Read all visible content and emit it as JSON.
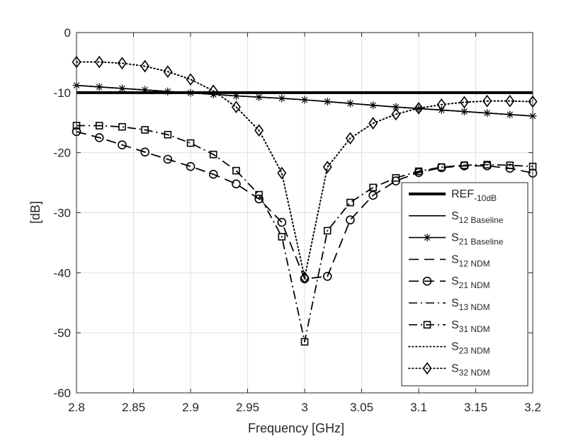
{
  "chart_data": {
    "type": "line",
    "title": "",
    "xlabel": "Frequency [GHz]",
    "ylabel": "[dB]",
    "xlim": [
      2.8,
      3.2
    ],
    "ylim": [
      -60,
      0
    ],
    "xticks": [
      2.8,
      2.85,
      2.9,
      2.95,
      3,
      3.05,
      3.1,
      3.15,
      3.2
    ],
    "xtick_labels": [
      "2.8",
      "2.85",
      "2.9",
      "2.95",
      "3",
      "3.05",
      "3.1",
      "3.15",
      "3.2"
    ],
    "yticks": [
      0,
      -10,
      -20,
      -30,
      -40,
      -50,
      -60
    ],
    "ytick_labels": [
      "0",
      "-10",
      "-20",
      "-30",
      "-40",
      "-50",
      "-60"
    ],
    "grid": true,
    "legend_position": "bottom-right",
    "x": [
      2.8,
      2.82,
      2.84,
      2.86,
      2.88,
      2.9,
      2.92,
      2.94,
      2.96,
      2.98,
      3.0,
      3.02,
      3.04,
      3.06,
      3.08,
      3.1,
      3.12,
      3.14,
      3.16,
      3.18,
      3.2
    ],
    "series": [
      {
        "id": "ref",
        "name": "REF",
        "sub": "-10dB",
        "style": "thick-solid",
        "marker": "none",
        "values": [
          -10,
          -10,
          -10,
          -10,
          -10,
          -10,
          -10,
          -10,
          -10,
          -10,
          -10,
          -10,
          -10,
          -10,
          -10,
          -10,
          -10,
          -10,
          -10,
          -10,
          -10
        ]
      },
      {
        "id": "s12b",
        "name": "S",
        "sub": "12 Baseline",
        "style": "solid",
        "marker": "none",
        "values": [
          -8.8,
          -9.05,
          -9.3,
          -9.55,
          -9.8,
          -10.05,
          -10.3,
          -10.55,
          -10.75,
          -10.95,
          -11.2,
          -11.5,
          -11.8,
          -12.1,
          -12.4,
          -12.65,
          -12.9,
          -13.15,
          -13.4,
          -13.65,
          -13.9
        ]
      },
      {
        "id": "s21b",
        "name": "S",
        "sub": "21 Baseline",
        "style": "solid",
        "marker": "star",
        "values": [
          -8.8,
          -9.05,
          -9.3,
          -9.55,
          -9.8,
          -10.05,
          -10.3,
          -10.55,
          -10.75,
          -10.95,
          -11.2,
          -11.5,
          -11.8,
          -12.1,
          -12.4,
          -12.65,
          -12.9,
          -13.15,
          -13.4,
          -13.65,
          -13.9
        ]
      },
      {
        "id": "s12n",
        "name": "S",
        "sub": "12 NDM",
        "style": "dashed",
        "marker": "none",
        "values": [
          -16.5,
          -17.5,
          -18.7,
          -19.9,
          -21.1,
          -22.3,
          -23.6,
          -25.2,
          -27.7,
          -31.6,
          -41.0,
          -40.6,
          -31.2,
          -27.1,
          -24.7,
          -23.3,
          -22.5,
          -22.2,
          -22.2,
          -22.6,
          -23.4
        ]
      },
      {
        "id": "s21n",
        "name": "S",
        "sub": "21 NDM",
        "style": "dashed",
        "marker": "circle",
        "values": [
          -16.5,
          -17.5,
          -18.7,
          -19.9,
          -21.1,
          -22.3,
          -23.6,
          -25.2,
          -27.7,
          -31.6,
          -41.0,
          -40.6,
          -31.2,
          -27.1,
          -24.7,
          -23.3,
          -22.5,
          -22.2,
          -22.2,
          -22.6,
          -23.4
        ]
      },
      {
        "id": "s13n",
        "name": "S",
        "sub": "13 NDM",
        "style": "dashdot",
        "marker": "none",
        "values": [
          -15.5,
          -15.5,
          -15.7,
          -16.2,
          -17.0,
          -18.4,
          -20.3,
          -23.0,
          -27.0,
          -34.0,
          -51.5,
          -33.0,
          -28.3,
          -25.8,
          -24.2,
          -23.1,
          -22.4,
          -22.1,
          -22.0,
          -22.1,
          -22.3
        ]
      },
      {
        "id": "s31n",
        "name": "S",
        "sub": "31 NDM",
        "style": "dashdot",
        "marker": "square",
        "values": [
          -15.5,
          -15.5,
          -15.7,
          -16.2,
          -17.0,
          -18.4,
          -20.3,
          -23.0,
          -27.0,
          -34.0,
          -51.5,
          -33.0,
          -28.3,
          -25.8,
          -24.2,
          -23.1,
          -22.4,
          -22.1,
          -22.0,
          -22.1,
          -22.3
        ]
      },
      {
        "id": "s23n",
        "name": "S",
        "sub": "23 NDM",
        "style": "dotted",
        "marker": "none",
        "values": [
          -4.9,
          -4.9,
          -5.1,
          -5.6,
          -6.5,
          -7.8,
          -9.7,
          -12.4,
          -16.3,
          -23.4,
          -40.8,
          -22.4,
          -17.6,
          -15.1,
          -13.6,
          -12.6,
          -12.0,
          -11.6,
          -11.4,
          -11.4,
          -11.5
        ]
      },
      {
        "id": "s32n",
        "name": "S",
        "sub": "32 NDM",
        "style": "dotted",
        "marker": "diamond",
        "values": [
          -4.9,
          -4.9,
          -5.1,
          -5.6,
          -6.5,
          -7.8,
          -9.7,
          -12.4,
          -16.3,
          -23.4,
          -40.8,
          -22.4,
          -17.6,
          -15.1,
          -13.6,
          -12.6,
          -12.0,
          -11.6,
          -11.4,
          -11.4,
          -11.5
        ]
      }
    ]
  }
}
